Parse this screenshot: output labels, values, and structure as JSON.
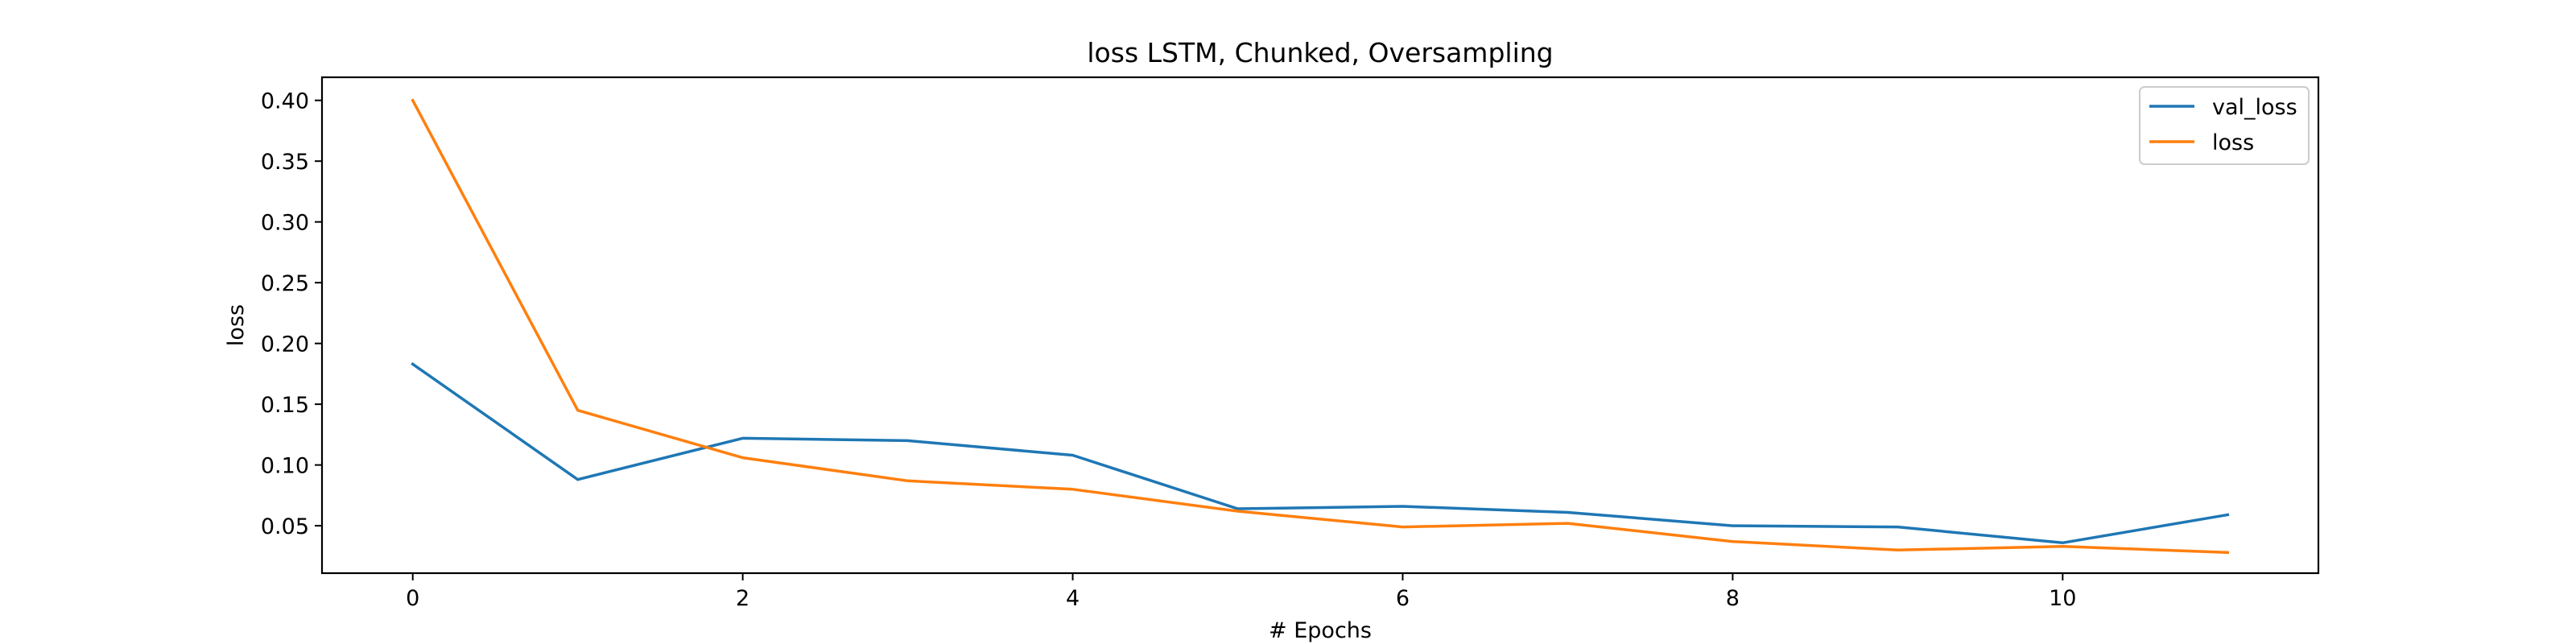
{
  "chart_data": {
    "type": "line",
    "title": "loss LSTM, Chunked, Oversampling",
    "xlabel": "# Epochs",
    "ylabel": "loss",
    "x": [
      0,
      1,
      2,
      3,
      4,
      5,
      6,
      7,
      8,
      9,
      10,
      11
    ],
    "xlim": [
      -0.55,
      11.55
    ],
    "ylim": [
      0.011,
      0.419
    ],
    "xticks": [
      0,
      2,
      4,
      6,
      8,
      10
    ],
    "yticks": [
      0.05,
      0.1,
      0.15,
      0.2,
      0.25,
      0.3,
      0.35,
      0.4
    ],
    "ytick_labels": [
      "0.05",
      "0.10",
      "0.15",
      "0.20",
      "0.25",
      "0.30",
      "0.35",
      "0.40"
    ],
    "grid": false,
    "legend_position": "top-right",
    "series": [
      {
        "name": "val_loss",
        "color": "#1f77b4",
        "values": [
          0.183,
          0.088,
          0.122,
          0.12,
          0.108,
          0.064,
          0.066,
          0.061,
          0.05,
          0.049,
          0.036,
          0.059
        ]
      },
      {
        "name": "loss",
        "color": "#ff7f0e",
        "values": [
          0.4,
          0.145,
          0.106,
          0.087,
          0.08,
          0.062,
          0.049,
          0.052,
          0.037,
          0.03,
          0.033,
          0.028
        ]
      }
    ]
  }
}
